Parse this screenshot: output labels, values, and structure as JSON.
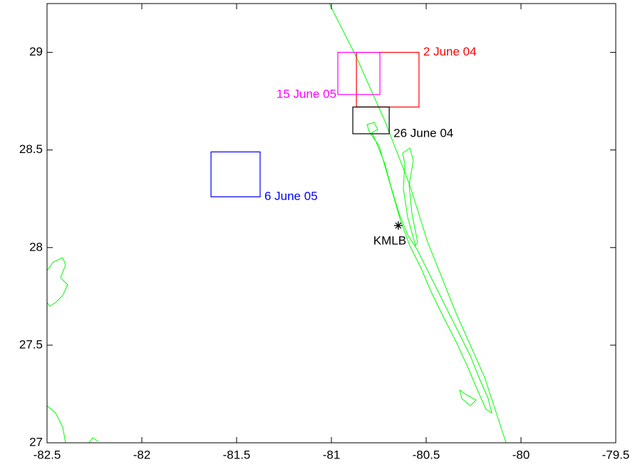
{
  "chart_data": {
    "type": "map",
    "xlim": [
      -82.5,
      -79.5
    ],
    "ylim": [
      27,
      29.25
    ],
    "xticks": [
      -82.5,
      -82,
      -81.5,
      -81,
      -80.5,
      -80,
      -79.5
    ],
    "yticks": [
      27,
      27.5,
      28,
      28.5,
      29
    ],
    "boxes": [
      {
        "name": "2 June 04",
        "color": "#ff0000",
        "lon": [
          -80.868,
          -80.538
        ],
        "lat": [
          28.72,
          29.0
        ]
      },
      {
        "name": "15 June 05",
        "color": "#ff00ff",
        "lon": [
          -80.966,
          -80.744
        ],
        "lat": [
          28.784,
          29.0
        ]
      },
      {
        "name": "26 June 04",
        "color": "#000000",
        "lon": [
          -80.887,
          -80.695
        ],
        "lat": [
          28.583,
          28.72
        ]
      },
      {
        "name": "6 June 05",
        "color": "#0000ff",
        "lon": [
          -81.635,
          -81.376
        ],
        "lat": [
          28.26,
          28.49
        ]
      }
    ],
    "points": [
      {
        "name": "KMLB",
        "lon": -80.647,
        "lat": 28.113
      }
    ],
    "coast_color": "#00ff00"
  }
}
